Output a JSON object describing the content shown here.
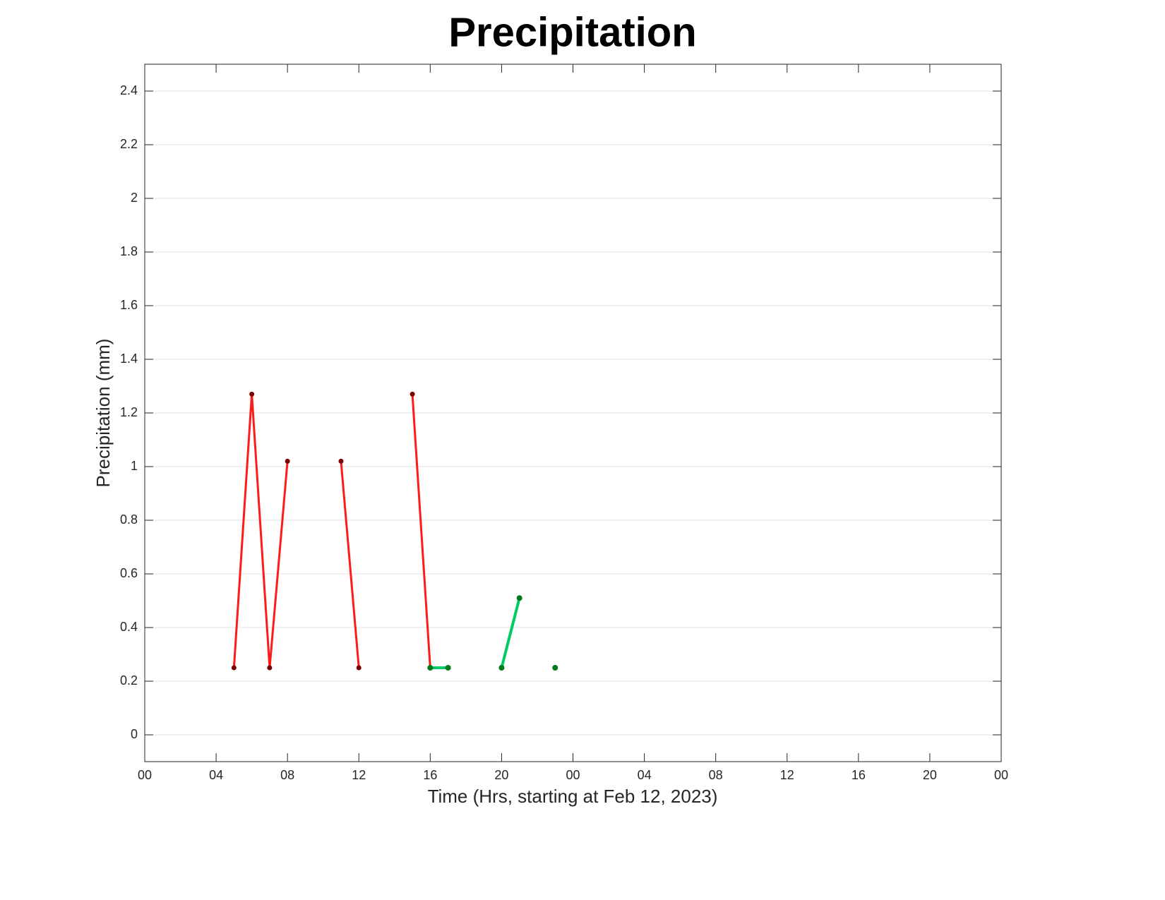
{
  "chart_data": {
    "type": "line",
    "title": "Precipitation",
    "xlabel": "Time (Hrs, starting at Feb 12, 2023)",
    "ylabel": "Precipitation (mm)",
    "xlim": [
      0,
      48
    ],
    "xticks": [
      {
        "value": 0,
        "label": "00"
      },
      {
        "value": 4,
        "label": "04"
      },
      {
        "value": 8,
        "label": "08"
      },
      {
        "value": 12,
        "label": "12"
      },
      {
        "value": 16,
        "label": "16"
      },
      {
        "value": 20,
        "label": "20"
      },
      {
        "value": 24,
        "label": "00"
      },
      {
        "value": 28,
        "label": "04"
      },
      {
        "value": 32,
        "label": "08"
      },
      {
        "value": 36,
        "label": "12"
      },
      {
        "value": 40,
        "label": "16"
      },
      {
        "value": 44,
        "label": "20"
      },
      {
        "value": 48,
        "label": "00"
      }
    ],
    "ylim": [
      -0.1,
      2.5
    ],
    "yticks": [
      0,
      0.2,
      0.4,
      0.6,
      0.8,
      1,
      1.2,
      1.4,
      1.6,
      1.8,
      2,
      2.2,
      2.4
    ],
    "grid": true,
    "series": [
      {
        "color": "#ff1a1a",
        "marker_color": "#7a0000",
        "x": [
          5,
          6,
          7,
          8,
          9,
          10,
          11,
          12,
          13,
          14,
          15,
          16
        ],
        "values": [
          0.25,
          1.27,
          0.25,
          1.02,
          null,
          null,
          1.02,
          0.25,
          null,
          null,
          1.27,
          0.25
        ]
      },
      {
        "color": "#00cc66",
        "marker_color": "#007a1a",
        "x": [
          16,
          17,
          18,
          19,
          20,
          21,
          22,
          23
        ],
        "values": [
          0.25,
          0.25,
          null,
          null,
          0.25,
          0.51,
          null,
          0.25
        ]
      }
    ]
  }
}
